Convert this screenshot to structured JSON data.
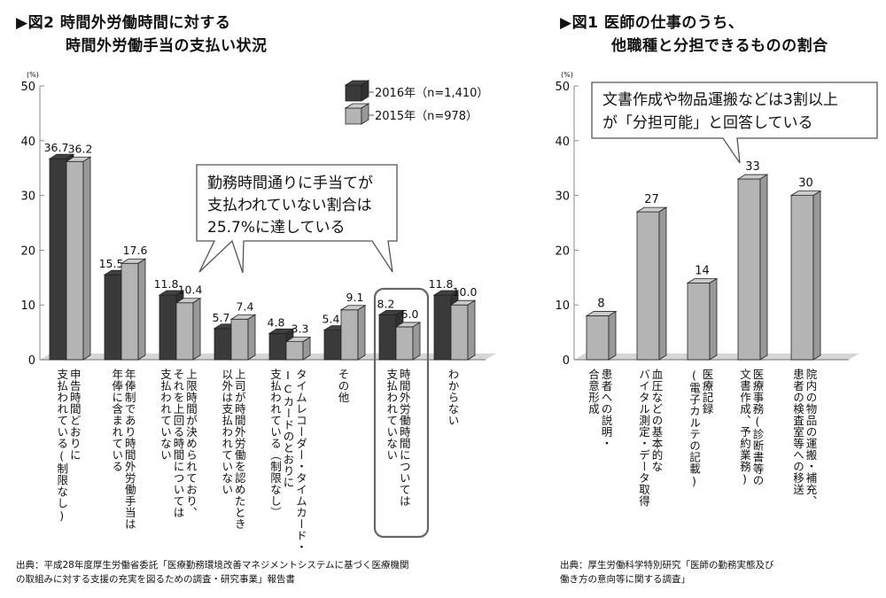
{
  "left_title_line1": "▶図2 時間外労働時間に対する",
  "left_title_line2": "時間外労働手当の支払い状況",
  "right_title_line1": "▶図1 医師の仕事のうち、",
  "right_title_line2": "他職種と分担できるものの割合",
  "left_source": "出典：平成28年度厚生労働省委託「医療勤務環境改善マネジメントシステムに基づく医療機関\nの取組みに対する支援の充実を図るための調査・研究事業」報告書",
  "right_source": "出典：厚生労働科学特別研究「医師の勤務実態及び\n働き方の意向等に関する調査」",
  "chart_data": [
    {
      "type": "bar",
      "title": "図2 時間外労働時間に対する時間外労働手当の支払い状況",
      "ylabel": "(%)",
      "ylim": [
        0,
        50
      ],
      "yticks": [
        0,
        10,
        20,
        30,
        40,
        50
      ],
      "legend_position": "top-right",
      "categories": [
        "申告時間どおりに支払われている(制限なし)",
        "年俸制であり時間外労働手当は年俸に含まれている",
        "上限時間が決められており、それを上回る時間については支払われていない",
        "上司が時間外労働を認めたとき以外は支払われていない",
        "タイムレコーダー・タイムカード・ICカードのとおりに支払われている（制限なし）",
        "その他",
        "時間外労働時間については支払われていない",
        "わからない"
      ],
      "category_lines": [
        [
          "申告時間どおりに",
          "支払われている(制限なし)"
        ],
        [
          "年俸制であり時間外労働手当は",
          "年俸に含まれている"
        ],
        [
          "上限時間が決められており、",
          "それを上回る時間については",
          "支払われていない"
        ],
        [
          "上司が時間外労働を認めたとき",
          "以外は支払われていない"
        ],
        [
          "タイムレコーダー・タイムカード・",
          "ICカードのとおりに",
          "支払われている（制限なし）"
        ],
        [
          "その他"
        ],
        [
          "時間外労働時間については",
          "支払われていない"
        ],
        [
          "わからない"
        ]
      ],
      "highlighted_category_index": 6,
      "series": [
        {
          "name": "2016年（n=1,410）",
          "color": "#3a3a3a",
          "values": [
            36.7,
            15.5,
            11.8,
            5.7,
            4.8,
            5.4,
            8.2,
            11.8
          ],
          "labels": [
            "36.7",
            "15.5",
            "11.8",
            "5.7",
            "4.8",
            "5.4",
            "8.2",
            "11.8"
          ]
        },
        {
          "name": "2015年（n=978）",
          "color": "#b4b4b4",
          "values": [
            36.2,
            17.6,
            10.4,
            7.4,
            3.3,
            9.1,
            6.0,
            10.0
          ],
          "labels": [
            "36.2",
            "17.6",
            "10.4",
            "7.4",
            "3.3",
            "9.1",
            "6.0",
            "10.0"
          ]
        }
      ],
      "annotation": [
        "勤務時間通りに手当てが",
        "支払われていない割合は",
        "25.7%に達している"
      ]
    },
    {
      "type": "bar",
      "title": "図1 医師の仕事のうち、他職種と分担できるものの割合",
      "ylabel": "(%)",
      "ylim": [
        0,
        50
      ],
      "yticks": [
        0,
        10,
        20,
        30,
        40,
        50
      ],
      "categories": [
        "患者への説明・合意形成",
        "血圧などの基本的なバイタル測定・データ取得",
        "医療記録(電子カルテの記載)",
        "医療事務(診断書等の文書作成、予約業務)",
        "院内の物品の運搬・補充、患者の検査室等への移送"
      ],
      "category_lines": [
        [
          "患者への説明・",
          "合意形成"
        ],
        [
          "血圧などの基本的な",
          "バイタル測定・データ取得"
        ],
        [
          "医療記録",
          "(電子カルテの記載)"
        ],
        [
          "医療事務(診断書等の",
          "文書作成、予約業務)"
        ],
        [
          "院内の物品の運搬・補充、",
          "患者の検査室等への移送"
        ]
      ],
      "series": [
        {
          "name": "割合",
          "color": "#b4b4b4",
          "values": [
            8,
            27,
            14,
            33,
            30
          ],
          "labels": [
            "8",
            "27",
            "14",
            "33",
            "30"
          ]
        }
      ],
      "annotation": [
        "文書作成や物品運搬などは3割以上",
        "が「分担可能」と回答している"
      ]
    }
  ]
}
